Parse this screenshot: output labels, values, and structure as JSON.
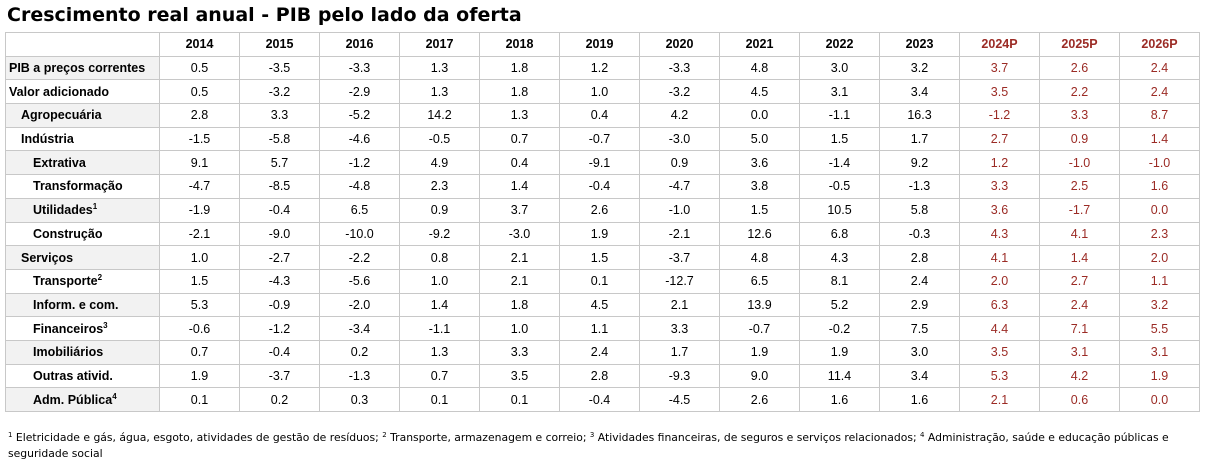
{
  "title": "Crescimento real anual - PIB pelo lado da oferta",
  "columns": [
    "2014",
    "2015",
    "2016",
    "2017",
    "2018",
    "2019",
    "2020",
    "2021",
    "2022",
    "2023",
    "2024P",
    "2025P",
    "2026P"
  ],
  "projected_columns": [
    10,
    11,
    12
  ],
  "colors": {
    "projection": "#9b2b25",
    "label_band": "#f2f2f2",
    "grid": "#c8c8c8"
  },
  "rows": [
    {
      "label": "PIB a preços correntes",
      "sup": "",
      "indent": 0,
      "values": [
        "0.5",
        "-3.5",
        "-3.3",
        "1.3",
        "1.8",
        "1.2",
        "-3.3",
        "4.8",
        "3.0",
        "3.2",
        "3.7",
        "2.6",
        "2.4"
      ]
    },
    {
      "label": "Valor adicionado",
      "sup": "",
      "indent": 0,
      "values": [
        "0.5",
        "-3.2",
        "-2.9",
        "1.3",
        "1.8",
        "1.0",
        "-3.2",
        "4.5",
        "3.1",
        "3.4",
        "3.5",
        "2.2",
        "2.4"
      ]
    },
    {
      "label": "Agropecuária",
      "sup": "",
      "indent": 1,
      "values": [
        "2.8",
        "3.3",
        "-5.2",
        "14.2",
        "1.3",
        "0.4",
        "4.2",
        "0.0",
        "-1.1",
        "16.3",
        "-1.2",
        "3.3",
        "8.7"
      ]
    },
    {
      "label": "Indústria",
      "sup": "",
      "indent": 1,
      "values": [
        "-1.5",
        "-5.8",
        "-4.6",
        "-0.5",
        "0.7",
        "-0.7",
        "-3.0",
        "5.0",
        "1.5",
        "1.7",
        "2.7",
        "0.9",
        "1.4"
      ]
    },
    {
      "label": "Extrativa",
      "sup": "",
      "indent": 2,
      "values": [
        "9.1",
        "5.7",
        "-1.2",
        "4.9",
        "0.4",
        "-9.1",
        "0.9",
        "3.6",
        "-1.4",
        "9.2",
        "1.2",
        "-1.0",
        "-1.0"
      ]
    },
    {
      "label": "Transformação",
      "sup": "",
      "indent": 2,
      "values": [
        "-4.7",
        "-8.5",
        "-4.8",
        "2.3",
        "1.4",
        "-0.4",
        "-4.7",
        "3.8",
        "-0.5",
        "-1.3",
        "3.3",
        "2.5",
        "1.6"
      ]
    },
    {
      "label": "Utilidades",
      "sup": "1",
      "indent": 2,
      "values": [
        "-1.9",
        "-0.4",
        "6.5",
        "0.9",
        "3.7",
        "2.6",
        "-1.0",
        "1.5",
        "10.5",
        "5.8",
        "3.6",
        "-1.7",
        "0.0"
      ]
    },
    {
      "label": "Construção",
      "sup": "",
      "indent": 2,
      "values": [
        "-2.1",
        "-9.0",
        "-10.0",
        "-9.2",
        "-3.0",
        "1.9",
        "-2.1",
        "12.6",
        "6.8",
        "-0.3",
        "4.3",
        "4.1",
        "2.3"
      ]
    },
    {
      "label": "Serviços",
      "sup": "",
      "indent": 1,
      "values": [
        "1.0",
        "-2.7",
        "-2.2",
        "0.8",
        "2.1",
        "1.5",
        "-3.7",
        "4.8",
        "4.3",
        "2.8",
        "4.1",
        "1.4",
        "2.0"
      ]
    },
    {
      "label": "Transporte",
      "sup": "2",
      "indent": 2,
      "values": [
        "1.5",
        "-4.3",
        "-5.6",
        "1.0",
        "2.1",
        "0.1",
        "-12.7",
        "6.5",
        "8.1",
        "2.4",
        "2.0",
        "2.7",
        "1.1"
      ]
    },
    {
      "label": "Inform. e com.",
      "sup": "",
      "indent": 2,
      "values": [
        "5.3",
        "-0.9",
        "-2.0",
        "1.4",
        "1.8",
        "4.5",
        "2.1",
        "13.9",
        "5.2",
        "2.9",
        "6.3",
        "2.4",
        "3.2"
      ]
    },
    {
      "label": "Financeiros",
      "sup": "3",
      "indent": 2,
      "values": [
        "-0.6",
        "-1.2",
        "-3.4",
        "-1.1",
        "1.0",
        "1.1",
        "3.3",
        "-0.7",
        "-0.2",
        "7.5",
        "4.4",
        "7.1",
        "5.5"
      ]
    },
    {
      "label": "Imobiliários",
      "sup": "",
      "indent": 2,
      "values": [
        "0.7",
        "-0.4",
        "0.2",
        "1.3",
        "3.3",
        "2.4",
        "1.7",
        "1.9",
        "1.9",
        "3.0",
        "3.5",
        "3.1",
        "3.1"
      ]
    },
    {
      "label": "Outras ativid.",
      "sup": "",
      "indent": 2,
      "values": [
        "1.9",
        "-3.7",
        "-1.3",
        "0.7",
        "3.5",
        "2.8",
        "-9.3",
        "9.0",
        "11.4",
        "3.4",
        "5.3",
        "4.2",
        "1.9"
      ]
    },
    {
      "label": "Adm. Pública",
      "sup": "4",
      "indent": 2,
      "values": [
        "0.1",
        "0.2",
        "0.3",
        "0.1",
        "0.1",
        "-0.4",
        "-4.5",
        "2.6",
        "1.6",
        "1.6",
        "2.1",
        "0.6",
        "0.0"
      ]
    }
  ],
  "footnotes": [
    {
      "mark": "1",
      "text": " Eletricidade e gás, água, esgoto, atividades de gestão de resíduos; "
    },
    {
      "mark": "2",
      "text": " Transporte, armazenagem e correio; "
    },
    {
      "mark": "3",
      "text": " Atividades financeiras, de seguros e serviços relacionados; "
    },
    {
      "mark": "4",
      "text": " Administração, saúde e educação públicas e seguridade social"
    }
  ]
}
